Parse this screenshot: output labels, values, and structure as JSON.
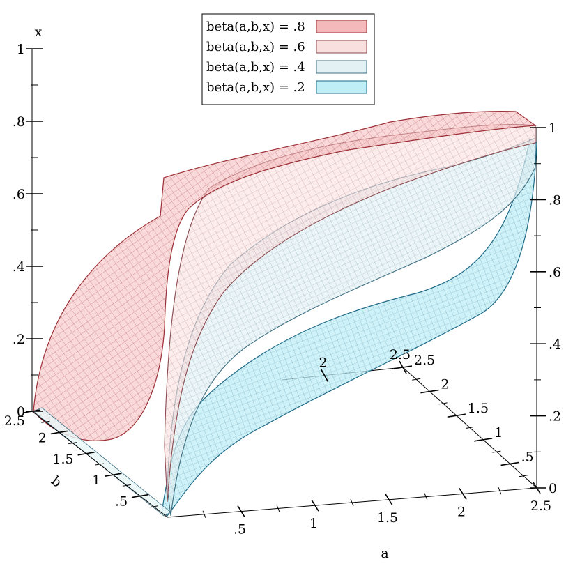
{
  "chart_data": {
    "type": "area",
    "surface_kind": "3d-isosurface-contours",
    "axes": {
      "x": {
        "label": "a",
        "range": [
          0,
          2.5
        ],
        "ticks": [
          ".5",
          "1",
          "1.5",
          "2",
          "2.5"
        ]
      },
      "y": {
        "label": "b",
        "range": [
          0,
          2.5
        ],
        "ticks": [
          ".5",
          "1",
          "1.5",
          "2",
          "2.5"
        ]
      },
      "z": {
        "label": "x",
        "range": [
          0,
          1
        ],
        "ticks": [
          "0",
          ".2",
          ".4",
          ".6",
          ".8",
          "1"
        ]
      },
      "z_right_ticks": [
        "0",
        ".2",
        ".4",
        ".6",
        ".8",
        "1"
      ],
      "back_a_ticks": [
        "2",
        "2.5"
      ],
      "back_b_ticks": [
        ".5",
        "1",
        "1.5",
        "2",
        "2.5"
      ]
    },
    "series": [
      {
        "name": "beta(a,b,x) = .8",
        "level": 0.8,
        "fill": "#f4b9bb",
        "stroke": "#9b2f35"
      },
      {
        "name": "beta(a,b,x) = .6",
        "level": 0.6,
        "fill": "#fadfdf",
        "stroke": "#8a4a4f"
      },
      {
        "name": "beta(a,b,x) = .4",
        "level": 0.4,
        "fill": "#e3f1f4",
        "stroke": "#3c6e80"
      },
      {
        "name": "beta(a,b,x) = .2",
        "level": 0.2,
        "fill": "#bfeef6",
        "stroke": "#1f6a87"
      }
    ],
    "legend_placement": "top-center",
    "grid": false
  }
}
